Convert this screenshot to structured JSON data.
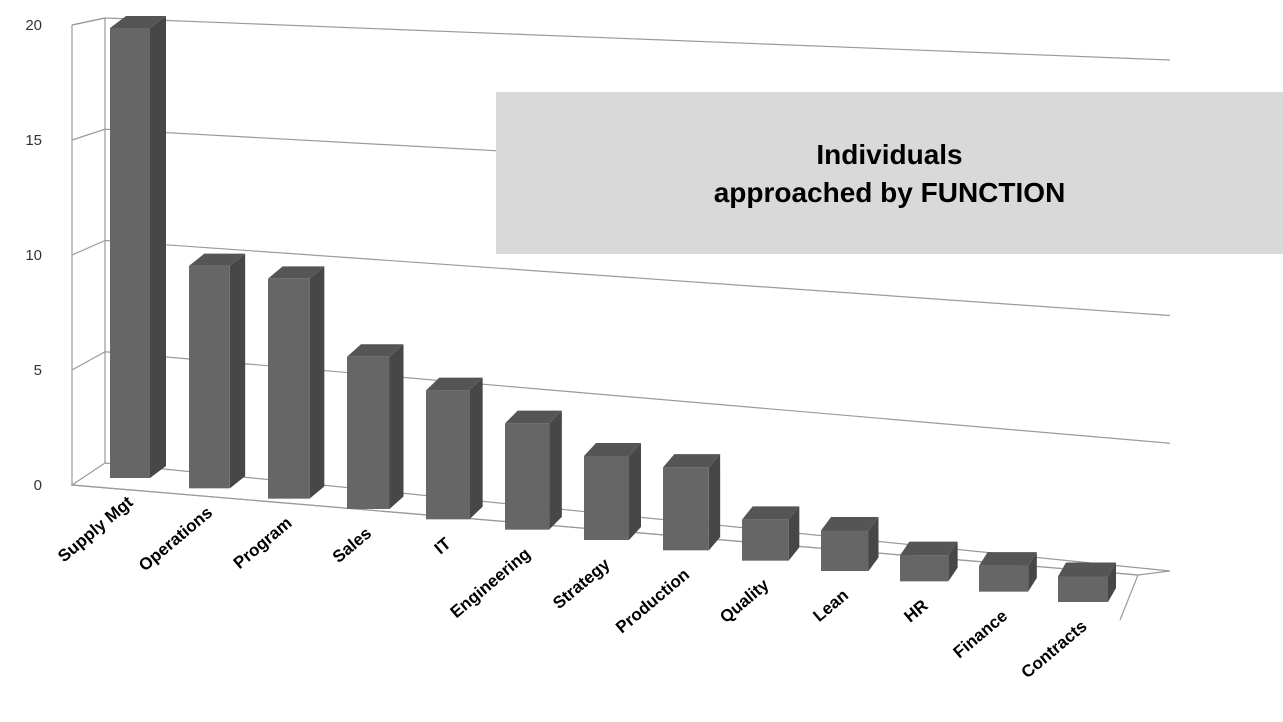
{
  "chart_data": {
    "type": "bar",
    "title": [
      "Individuals",
      "approached by FUNCTION"
    ],
    "categories": [
      "Supply Mgt",
      "Operations",
      "Program",
      "Sales",
      "IT",
      "Engineering",
      "Strategy",
      "Production",
      "Quality",
      "Lean",
      "HR",
      "Finance",
      "Contracts"
    ],
    "values": [
      20,
      10,
      10,
      7,
      6,
      5,
      4,
      4,
      2,
      2,
      1,
      1,
      1
    ],
    "ylim": [
      0,
      20
    ],
    "yticks": [
      "0",
      "5",
      "10",
      "15",
      "20"
    ],
    "grid": true,
    "colors": {
      "front": "#666666",
      "side": "#474747",
      "top": "#555555",
      "grid": "#9a9a9a",
      "title_bg": "#d9d9d9"
    }
  }
}
